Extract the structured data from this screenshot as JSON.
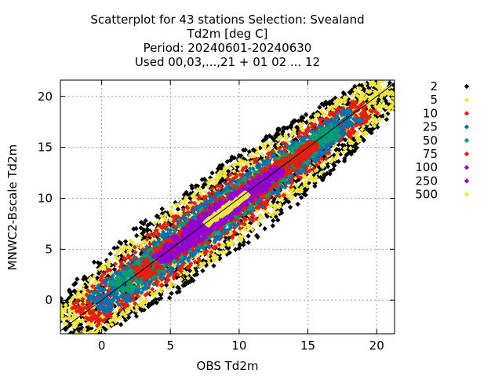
{
  "chart_data": {
    "type": "scatter",
    "title_lines": [
      "Scatterplot for   43 stations Selection: Svealand",
      "Td2m [deg C]",
      "Period: 20240601-20240630",
      "Used 00,03,...,21 + 01 02 ... 12"
    ],
    "xlabel": "OBS Td2m",
    "ylabel": "MNWC2-Bscale Td2m",
    "xlim": [
      -3.0,
      21.3
    ],
    "ylim": [
      -3.3,
      21.6
    ],
    "xticks": [
      0,
      5,
      10,
      15,
      20
    ],
    "yticks": [
      0,
      5,
      10,
      15,
      20
    ],
    "grid": true,
    "diagonal_line": "y = x",
    "legend_placement": "right",
    "legend": [
      {
        "label": "2",
        "color": "#000000"
      },
      {
        "label": "5",
        "color": "#f0e442"
      },
      {
        "label": "10",
        "color": "#e51e10"
      },
      {
        "label": "25",
        "color": "#0072b2"
      },
      {
        "label": "50",
        "color": "#009e73"
      },
      {
        "label": "75",
        "color": "#e51e10"
      },
      {
        "label": "100",
        "color": "#9400d3"
      },
      {
        "label": "250",
        "color": "#9400d3"
      },
      {
        "label": "500",
        "color": "#f0e442"
      }
    ],
    "density_bands": [
      {
        "count_threshold": "2",
        "color": "#000000",
        "cross_width": 3.9,
        "along_start": -3.0,
        "along_end": 21.0
      },
      {
        "count_threshold": "5",
        "color": "#f0e442",
        "cross_width": 3.3,
        "along_start": -2.8,
        "along_end": 20.8
      },
      {
        "count_threshold": "10",
        "color": "#e51e10",
        "cross_width": 2.5,
        "along_start": -1.5,
        "along_end": 19.2
      },
      {
        "count_threshold": "25",
        "color": "#0072b2",
        "cross_width": 1.9,
        "along_start": -0.5,
        "along_end": 18.3
      },
      {
        "count_threshold": "50",
        "color": "#009e73",
        "cross_width": 1.4,
        "along_start": 1.0,
        "along_end": 17.0
      },
      {
        "count_threshold": "75",
        "color": "#e51e10",
        "cross_width": 1.2,
        "along_start": 2.5,
        "along_end": 15.5
      },
      {
        "count_threshold": "100",
        "color": "#9400d3",
        "cross_width": 1.0,
        "along_start": 4.0,
        "along_end": 13.0
      },
      {
        "count_threshold": "250",
        "color": "#9400d3",
        "cross_width": 0.55,
        "along_start": 6.0,
        "along_end": 11.0
      },
      {
        "count_threshold": "500",
        "color": "#f0e442",
        "cross_width": 0.25,
        "along_start": 7.5,
        "along_end": 10.5
      }
    ]
  }
}
